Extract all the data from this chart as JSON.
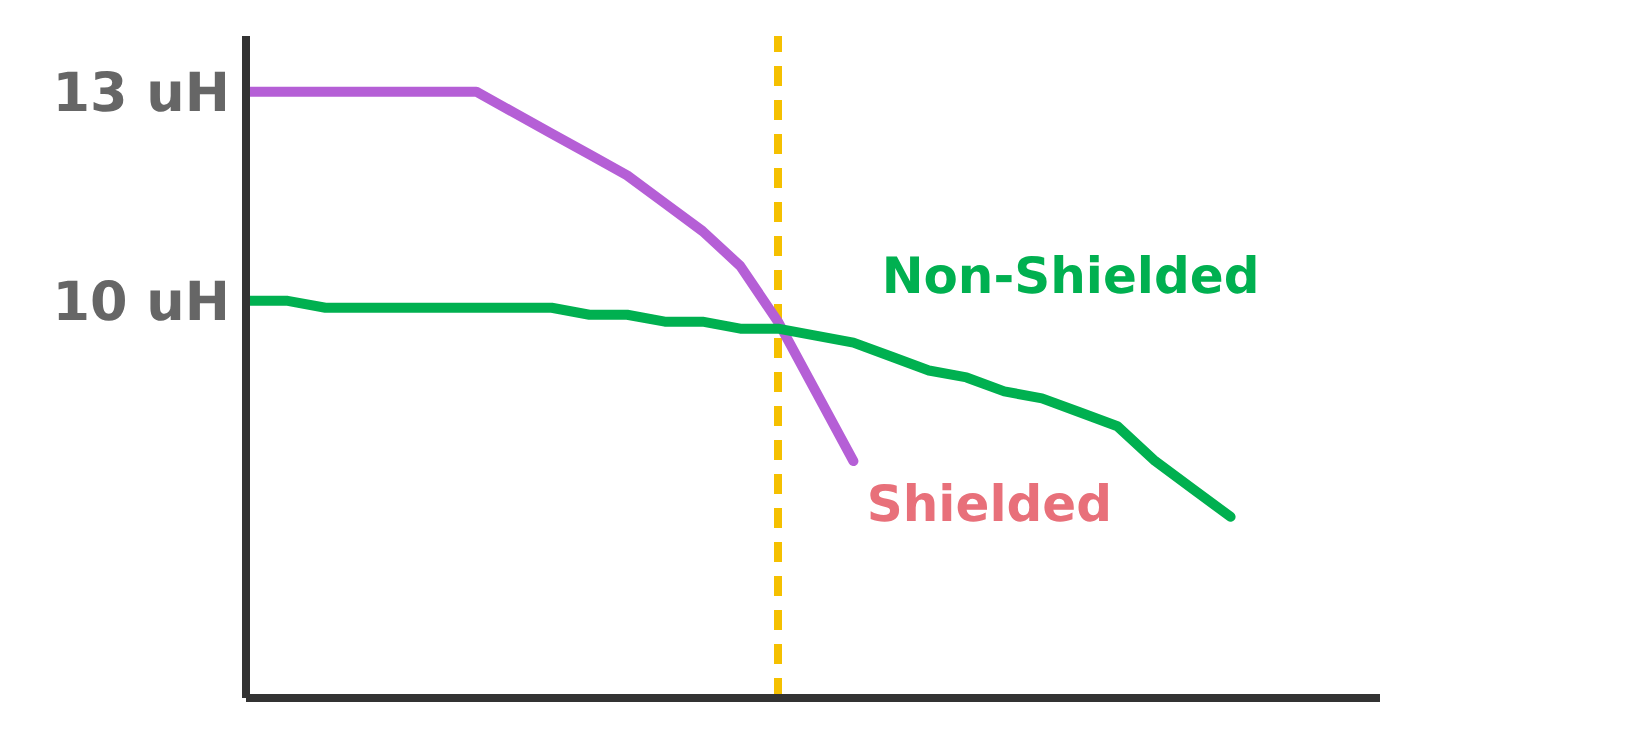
{
  "chart_data": {
    "type": "line",
    "categories": [
      null,
      null,
      null,
      null,
      null,
      null,
      null,
      null,
      null,
      null,
      null,
      null,
      null,
      null,
      null,
      null,
      null,
      null,
      null,
      null,
      null,
      null,
      null,
      null,
      null,
      null,
      null,
      null,
      null
    ],
    "series": [
      {
        "name": "Shielded",
        "color": "#b55fd6",
        "values": [
          13.0,
          13.0,
          13.0,
          13.0,
          13.0,
          13.0,
          13.0,
          12.7,
          12.4,
          12.1,
          11.8,
          11.4,
          11.0,
          10.5,
          9.7,
          8.7,
          7.7,
          null,
          null,
          null,
          null,
          null,
          null,
          null,
          null,
          null,
          null,
          null,
          null
        ]
      },
      {
        "name": "Non-Shielded",
        "color": "#00b050",
        "values": [
          10.0,
          10.0,
          9.9,
          9.9,
          9.9,
          9.9,
          9.9,
          9.9,
          9.9,
          9.8,
          9.8,
          9.7,
          9.7,
          9.6,
          9.6,
          9.5,
          9.4,
          9.2,
          9.0,
          8.9,
          8.7,
          8.6,
          8.4,
          8.2,
          7.7,
          7.3,
          6.9,
          null,
          null
        ]
      }
    ],
    "ylim": [
      4.3,
      13.8
    ],
    "yticks": [
      {
        "value": 10,
        "label": "10 uH"
      },
      {
        "value": 13,
        "label": "13 uH"
      }
    ],
    "tick_labels": "y",
    "grid": false,
    "legend": false,
    "marker": "none",
    "line_style": "solid"
  }
}
